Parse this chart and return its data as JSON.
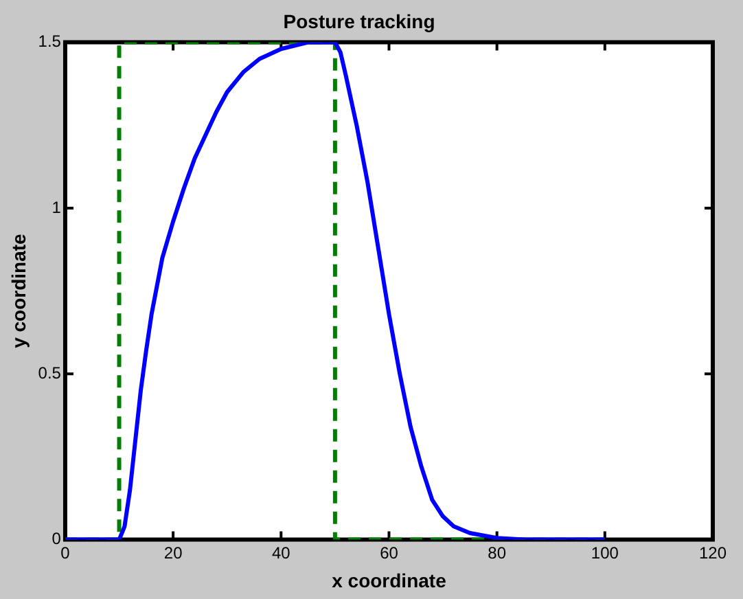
{
  "chart_data": {
    "type": "line",
    "title": "Posture tracking",
    "xlabel": "x coordinate",
    "ylabel": "y coordinate",
    "xlim": [
      0,
      120
    ],
    "xticks": [
      0,
      20,
      40,
      60,
      80,
      100,
      120
    ],
    "ylim": [
      0,
      1.5
    ],
    "yticks": [
      0,
      0.5,
      1,
      1.5
    ],
    "grid": false,
    "legend": false,
    "marker": "none",
    "series": [
      {
        "color": "#0000ff",
        "line_style": "solid",
        "x": [
          0,
          10,
          11,
          12,
          13,
          14,
          15,
          16,
          18,
          20,
          22,
          24,
          26,
          28,
          30,
          33,
          36,
          40,
          45,
          50,
          51,
          52,
          54,
          56,
          58,
          60,
          62,
          64,
          66,
          68,
          70,
          72,
          75,
          80,
          85,
          100
        ],
        "values": [
          0,
          0,
          0.04,
          0.15,
          0.3,
          0.45,
          0.57,
          0.68,
          0.85,
          0.96,
          1.06,
          1.15,
          1.22,
          1.29,
          1.35,
          1.41,
          1.45,
          1.48,
          1.5,
          1.5,
          1.47,
          1.4,
          1.25,
          1.08,
          0.88,
          0.68,
          0.5,
          0.34,
          0.22,
          0.12,
          0.07,
          0.04,
          0.02,
          0.005,
          0,
          0
        ]
      },
      {
        "color": "#008000",
        "line_style": "dashed",
        "x": [
          0,
          10,
          10,
          50,
          50,
          100
        ],
        "values": [
          0,
          0,
          1.5,
          1.5,
          0,
          0
        ]
      }
    ]
  }
}
